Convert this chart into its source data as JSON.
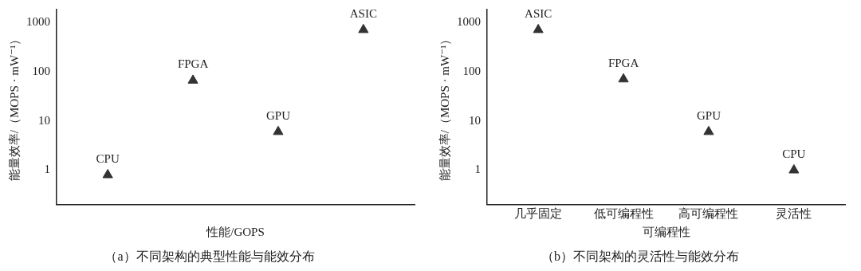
{
  "chart_data": [
    {
      "type": "scatter",
      "title": "（a）不同架构的典型性能与能效分布",
      "xlabel": "性能/GOPS",
      "ylabel": "能量效率/（MOPS · mW⁻¹）",
      "categories": [
        null,
        null,
        null,
        null
      ],
      "log": "y",
      "ylim": [
        0.2,
        1800
      ],
      "yticks": [
        1,
        10,
        100,
        1000
      ],
      "series": [
        {
          "name": "CPU",
          "color": "#333333",
          "values": [
            0.8,
            null,
            null,
            null
          ]
        },
        {
          "name": "FPGA",
          "color": "#333333",
          "values": [
            null,
            66,
            null,
            null
          ]
        },
        {
          "name": "GPU",
          "color": "#333333",
          "values": [
            null,
            null,
            6,
            null
          ]
        },
        {
          "name": "ASIC",
          "color": "#333333",
          "values": [
            null,
            null,
            null,
            700
          ]
        }
      ],
      "marker": "triangle",
      "grid": false,
      "legend": false
    },
    {
      "type": "scatter",
      "title": "（b）不同架构的灵活性与能效分布",
      "xlabel": "可编程性",
      "ylabel": "能量效率/（MOPS · mW⁻¹）",
      "categories": [
        "几乎固定",
        "低可编程性",
        "高可编程性",
        "灵活性"
      ],
      "log": "y",
      "ylim": [
        0.2,
        1800
      ],
      "yticks": [
        1,
        10,
        100,
        1000
      ],
      "series": [
        {
          "name": "ASIC",
          "color": "#333333",
          "values": [
            700,
            null,
            null,
            null
          ]
        },
        {
          "name": "FPGA",
          "color": "#333333",
          "values": [
            null,
            70,
            null,
            null
          ]
        },
        {
          "name": "GPU",
          "color": "#333333",
          "values": [
            null,
            null,
            6,
            null
          ]
        },
        {
          "name": "CPU",
          "color": "#333333",
          "values": [
            null,
            null,
            null,
            1
          ]
        }
      ],
      "marker": "triangle",
      "grid": false,
      "legend": false
    }
  ]
}
